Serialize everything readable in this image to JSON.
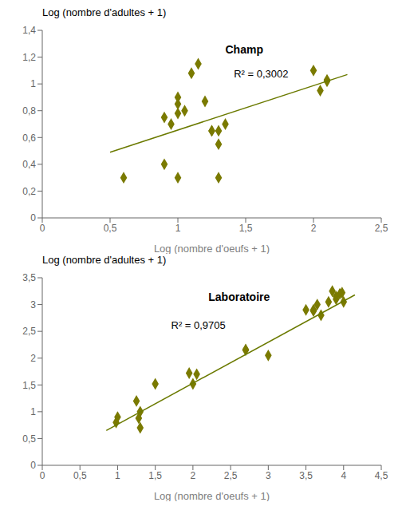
{
  "chart_data": [
    {
      "type": "scatter",
      "title": "Champ",
      "annotations": [
        "R² = 0,3002"
      ],
      "x_label": "Log (nombre d'oeufs + 1)",
      "y_label": "Log (nombre d'adultes + 1)",
      "xlim": [
        0,
        2.5
      ],
      "ylim": [
        0,
        1.4
      ],
      "xticks": [
        0,
        {
          "value": 0.5,
          "label": "0,5"
        },
        1,
        {
          "value": 1.5,
          "label": "1,5"
        },
        2,
        {
          "value": 2.5,
          "label": "2,5"
        }
      ],
      "yticks": [
        0,
        {
          "value": 0.2,
          "label": "0,2"
        },
        {
          "value": 0.4,
          "label": "0,4"
        },
        {
          "value": 0.6,
          "label": "0,6"
        },
        {
          "value": 0.8,
          "label": "0,8"
        },
        1,
        {
          "value": 1.2,
          "label": "1,2"
        },
        {
          "value": 1.4,
          "label": "1,4"
        }
      ],
      "grid": false,
      "series": [
        {
          "type": "scatter",
          "color": "#7a7a00",
          "marker": "diamond",
          "x": [
            0.6,
            0.9,
            0.9,
            0.95,
            1.0,
            1.0,
            1.0,
            1.0,
            1.05,
            1.1,
            1.15,
            1.2,
            1.25,
            1.25,
            1.3,
            1.3,
            1.3,
            1.35,
            2.0,
            2.05,
            2.1,
            2.1
          ],
          "values": [
            0.3,
            0.4,
            0.75,
            0.7,
            0.78,
            0.85,
            0.3,
            0.9,
            0.8,
            1.08,
            1.15,
            0.87,
            0.65,
            0.65,
            0.3,
            0.55,
            0.65,
            0.7,
            1.1,
            0.95,
            1.03,
            1.02
          ]
        },
        {
          "type": "line",
          "color": "#6b7a00",
          "x": [
            0.5,
            2.25
          ],
          "values": [
            0.49,
            1.07
          ]
        }
      ]
    },
    {
      "type": "scatter",
      "title": "Laboratoire",
      "annotations": [
        "R² = 0,9705"
      ],
      "x_label": "Log (nombre d'oeufs + 1)",
      "y_label": "Log (nombre d'adultes + 1)",
      "xlim": [
        0,
        4.5
      ],
      "ylim": [
        0,
        3.5
      ],
      "xticks": [
        0,
        {
          "value": 0.5,
          "label": "0,5"
        },
        1,
        {
          "value": 1.5,
          "label": "1,5"
        },
        2,
        {
          "value": 2.5,
          "label": "2,5"
        },
        3,
        {
          "value": 3.5,
          "label": "3,5"
        },
        4,
        {
          "value": 4.5,
          "label": "4,5"
        }
      ],
      "yticks": [
        0,
        {
          "value": 0.5,
          "label": "0,5"
        },
        1,
        {
          "value": 1.5,
          "label": "1,5"
        },
        2,
        {
          "value": 2.5,
          "label": "2,5"
        },
        3,
        {
          "value": 3.5,
          "label": "3,5"
        }
      ],
      "grid": false,
      "series": [
        {
          "type": "scatter",
          "color": "#7a7a00",
          "marker": "diamond",
          "x": [
            0.98,
            1.0,
            1.25,
            1.28,
            1.3,
            1.3,
            1.5,
            1.95,
            2.0,
            2.05,
            2.7,
            2.7,
            3.0,
            3.5,
            3.6,
            3.6,
            3.65,
            3.7,
            3.8,
            3.85,
            3.9,
            3.9,
            3.95,
            3.98,
            4.0
          ],
          "values": [
            0.8,
            0.9,
            1.2,
            0.88,
            0.7,
            1.0,
            1.52,
            1.72,
            1.52,
            1.7,
            2.15,
            2.16,
            2.05,
            2.9,
            2.88,
            2.9,
            3.0,
            2.8,
            3.05,
            3.25,
            3.1,
            3.15,
            3.2,
            3.22,
            3.05
          ]
        },
        {
          "type": "line",
          "color": "#6b7a00",
          "x": [
            0.85,
            4.15
          ],
          "values": [
            0.65,
            3.18
          ]
        }
      ]
    }
  ]
}
